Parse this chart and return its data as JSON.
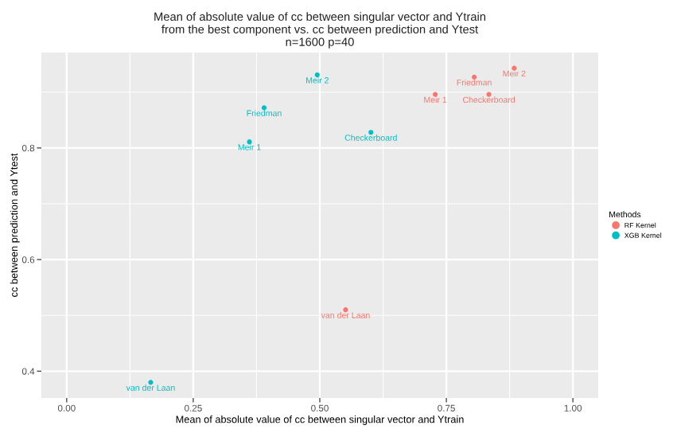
{
  "chart_data": {
    "type": "scatter",
    "title": "Mean of absolute value of cc between singular vector and Ytrain\nfrom the best component vs. cc between prediction and Ytest\nn=1600 p=40",
    "xlabel": "Mean of absolute value of cc between singular vector and Ytrain",
    "ylabel": "cc between prediction and Ytest",
    "legend_title": "Methods",
    "series": [
      {
        "name": "RF Kernel",
        "color": "#f8766d",
        "x": [
          0.884,
          0.805,
          0.728,
          0.834,
          0.551
        ],
        "values": [
          0.943,
          0.927,
          0.896,
          0.896,
          0.51
        ]
      },
      {
        "name": "XGB Kernel",
        "color": "#00bfc4",
        "x": [
          0.495,
          0.39,
          0.601,
          0.361,
          0.166
        ],
        "values": [
          0.931,
          0.872,
          0.828,
          0.811,
          0.38
        ]
      }
    ],
    "annotations": [
      {
        "text": "Meir 2",
        "x": 0.884,
        "y": 0.943
      },
      {
        "text": "Friedman",
        "x": 0.805,
        "y": 0.927
      },
      {
        "text": "Meir 1",
        "x": 0.728,
        "y": 0.896
      },
      {
        "text": "Checkerboard",
        "x": 0.834,
        "y": 0.896
      },
      {
        "text": "van der Laan",
        "x": 0.551,
        "y": 0.51
      },
      {
        "text": "Meir 2",
        "x": 0.495,
        "y": 0.931
      },
      {
        "text": "Friedman",
        "x": 0.39,
        "y": 0.872
      },
      {
        "text": "Checkerboard",
        "x": 0.601,
        "y": 0.828
      },
      {
        "text": "Meir 1",
        "x": 0.361,
        "y": 0.811
      },
      {
        "text": "van der Laan",
        "x": 0.166,
        "y": 0.38
      }
    ],
    "xlim": [
      -0.05,
      1.05
    ],
    "ylim": [
      0.352,
      0.971
    ],
    "xticks": [
      {
        "value": 0,
        "label": "0.00"
      },
      {
        "value": 0.25,
        "label": "0.25"
      },
      {
        "value": 0.5,
        "label": "0.50"
      },
      {
        "value": 0.75,
        "label": "0.75"
      },
      {
        "value": 1,
        "label": "1.00"
      }
    ],
    "yticks": [
      0.4,
      0.6,
      0.8
    ],
    "grid": true,
    "legend": "right",
    "marker": "circle"
  }
}
